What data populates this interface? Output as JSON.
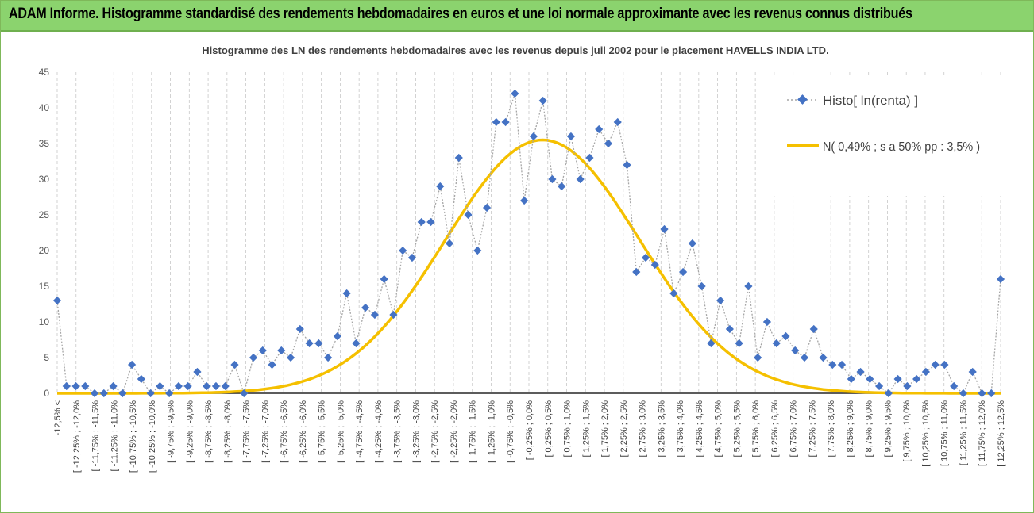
{
  "banner": {
    "title": "ADAM Informe. Histogramme standardisé des rendements hebdomadaires en euros et une loi normale approximante avec les revenus connus distribués"
  },
  "colors": {
    "banner_bg": "#8bd36e",
    "histo_marker": "#4472c4",
    "histo_line": "#a6a6a6",
    "normal_curve": "#f5c000",
    "grid": "#bfbfbf"
  },
  "chart_data": {
    "type": "line",
    "title": "Histogramme des LN des rendements hebdomadaires avec les revenus depuis juil 2002 pour le placement HAVELLS INDIA LTD.",
    "xlabel": "",
    "ylabel": "",
    "ylim": [
      0,
      45
    ],
    "yticks": [
      0,
      5,
      10,
      15,
      20,
      25,
      30,
      35,
      40,
      45
    ],
    "grid": "vertical dashed",
    "legend_position": "top-right",
    "categories": [
      "-12,5% <",
      "[ -12,25% ; -12,0%",
      "[ -11,75% ; -11,5%",
      "[ -11,25% ; -11,0%",
      "[ -10,75% ; -10,5%",
      "[ -10,25% ; -10,0%",
      "[ -9,75% ; -9,5%",
      "[ -9,25% ; -9,0%",
      "[ -8,75% ; -8,5%",
      "[ -8,25% ; -8,0%",
      "[ -7,75% ; -7,5%",
      "[ -7,25% ; -7,0%",
      "[ -6,75% ; -6,5%",
      "[ -6,25% ; -6,0%",
      "[ -5,75% ; -5,5%",
      "[ -5,25% ; -5,0%",
      "[ -4,75% ; -4,5%",
      "[ -4,25% ; -4,0%",
      "[ -3,75% ; -3,5%",
      "[ -3,25% ; -3,0%",
      "[ -2,75% ; -2,5%",
      "[ -2,25% ; -2,0%",
      "[ -1,75% ; -1,5%",
      "[ -1,25% ; -1,0%",
      "[ -0,75% ; -0,5%",
      "[ -0,25% ; 0,0%",
      "[ 0,25% ; 0,5%",
      "[ 0,75% ; 1,0%",
      "[ 1,25% ; 1,5%",
      "[ 1,75% ; 2,0%",
      "[ 2,25% ; 2,5%",
      "[ 2,75% ; 3,0%",
      "[ 3,25% ; 3,5%",
      "[ 3,75% ; 4,0%",
      "[ 4,25% ; 4,5%",
      "[ 4,75% ; 5,0%",
      "[ 5,25% ; 5,5%",
      "[ 5,75% ; 6,0%",
      "[ 6,25% ; 6,5%",
      "[ 6,75% ; 7,0%",
      "[ 7,25% ; 7,5%",
      "[ 7,75% ; 8,0%",
      "[ 8,25% ; 9,0%",
      "[ 8,75% ; 9,0%",
      "[ 9,25% ; 9,5%",
      "[ 9,75% ; 10,0%",
      "[ 10,25% ; 10,5%",
      "[ 10,75% ; 11,0%",
      "[ 11,25% ; 11,5%",
      "[ 11,75% ; 12,0%",
      "[ 12,25% ; 12,5%"
    ],
    "series": [
      {
        "name": "Histo[ ln(renta) ]",
        "type": "scatter-dotted",
        "values": [
          13,
          1,
          1,
          1,
          0,
          0,
          1,
          0,
          4,
          2,
          0,
          1,
          0,
          1,
          1,
          3,
          1,
          1,
          1,
          4,
          0,
          5,
          6,
          4,
          6,
          5,
          9,
          7,
          7,
          5,
          8,
          14,
          7,
          12,
          11,
          16,
          11,
          20,
          19,
          24,
          24,
          29,
          21,
          33,
          25,
          20,
          26,
          38,
          38,
          42,
          27,
          36,
          41,
          30,
          29,
          36,
          30,
          33,
          37,
          35,
          38,
          32,
          17,
          19,
          18,
          23,
          14,
          17,
          21,
          15,
          7,
          13,
          9,
          7,
          15,
          5,
          10,
          7,
          8,
          6,
          5,
          9,
          5,
          4,
          4,
          2,
          3,
          2,
          1,
          0,
          2,
          1,
          2,
          3,
          4,
          4,
          1,
          0,
          3,
          0,
          0,
          16
        ]
      },
      {
        "name": "N( 0,49% ; s a 50% pp : 3,5% )",
        "type": "line",
        "mean": 0.49,
        "peak": 35.5
      }
    ]
  }
}
